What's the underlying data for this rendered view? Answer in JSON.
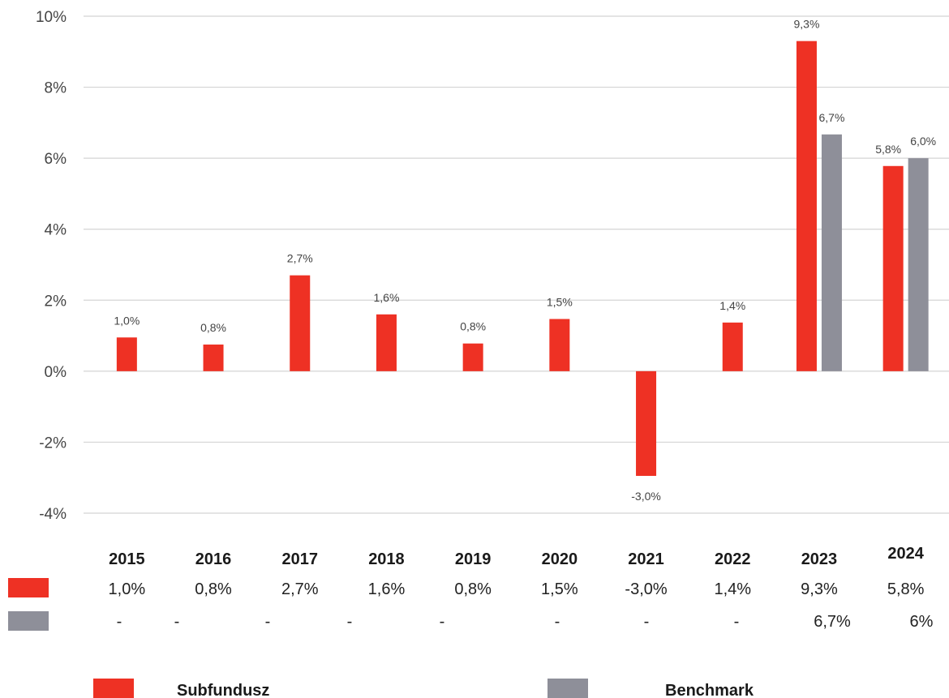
{
  "chart_data": {
    "type": "bar",
    "categories": [
      "2015",
      "2016",
      "2017",
      "2018",
      "2019",
      "2020",
      "2021",
      "2022",
      "2023",
      "2024"
    ],
    "series": [
      {
        "name": "Subfundusz",
        "color": "#EE3124",
        "values": [
          0.95,
          0.75,
          2.7,
          1.6,
          0.78,
          1.47,
          -2.95,
          1.37,
          9.3,
          5.78
        ],
        "labels": [
          "1,0%",
          "0,8%",
          "2,7%",
          "1,6%",
          "0,8%",
          "1,5%",
          "-3,0%",
          "1,4%",
          "9,3%",
          "5,8%"
        ],
        "table": [
          "1,0%",
          "0,8%",
          "2,7%",
          "1,6%",
          "0,8%",
          "1,5%",
          "-3,0%",
          "1,4%",
          "9,3%",
          "5,8%"
        ]
      },
      {
        "name": "Benchmark",
        "color": "#8E8F99",
        "values": [
          null,
          null,
          null,
          null,
          null,
          null,
          null,
          null,
          6.67,
          6.0
        ],
        "labels": [
          null,
          null,
          null,
          null,
          null,
          null,
          null,
          null,
          "6,7%",
          "6,0%"
        ],
        "table": [
          "-",
          "-",
          "-",
          "-",
          "-",
          "-",
          "-",
          "-",
          "6,7%",
          "6%"
        ]
      }
    ],
    "ylim": [
      -4,
      10
    ],
    "yticks": [
      -4,
      -2,
      0,
      2,
      4,
      6,
      8,
      10
    ],
    "ytick_labels": [
      "-4%",
      "-2%",
      "0%",
      "2%",
      "4%",
      "6%",
      "8%",
      "10%"
    ],
    "grid": true,
    "legend": "bottom"
  }
}
